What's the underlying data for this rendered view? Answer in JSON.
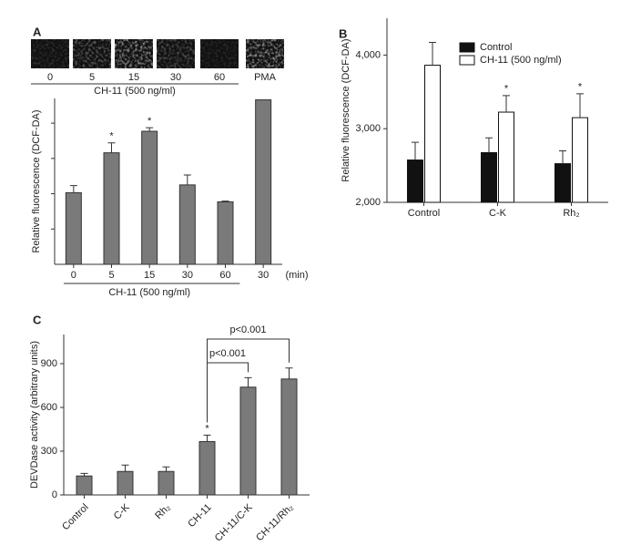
{
  "chart_data": [
    {
      "type": "bar",
      "panel_label": "A",
      "categories": [
        "0",
        "5",
        "15",
        "30",
        "60",
        "30"
      ],
      "values": [
        2.03,
        3.16,
        3.77,
        2.25,
        1.77,
        4.66
      ],
      "errors": [
        0.2,
        0.28,
        0.1,
        0.28,
        0.02,
        0
      ],
      "markers": [
        null,
        "*",
        "*",
        null,
        null,
        null
      ],
      "color": "#7a7a7a",
      "ylim": [
        0,
        4.7
      ],
      "yticks": [
        1,
        2,
        3,
        4
      ],
      "tick_labels": false,
      "ylabel": "Relative fluorescence (DCF-DA)",
      "xlabel": "(min)",
      "group_label": "CH-11 (500 ng/ml)",
      "image_labels": [
        "0",
        "5",
        "15",
        "30",
        "60",
        "PMA"
      ],
      "image_group_label": "CH-11 (500 ng/ml)"
    },
    {
      "type": "grouped_bar",
      "panel_label": "B",
      "categories": [
        "Control",
        "C-K",
        "Rh₂"
      ],
      "series": [
        {
          "name": "Control",
          "color": "#111111",
          "values": [
            2575,
            2675,
            2525
          ],
          "errors": [
            240,
            200,
            175
          ],
          "markers": [
            null,
            null,
            null
          ]
        },
        {
          "name": "CH-11 (500 ng/ml)",
          "color": "#ffffff",
          "values": [
            3862,
            3225,
            3150
          ],
          "errors": [
            310,
            225,
            325
          ],
          "markers": [
            null,
            "*",
            "*"
          ]
        }
      ],
      "ylim": [
        2000,
        4500
      ],
      "yticks": [
        {
          "value": 2000,
          "label": "2,000"
        },
        {
          "value": 3000,
          "label": "3,000"
        },
        {
          "value": 4000,
          "label": "4,000"
        }
      ],
      "ylabel": "Relative fluorescence (DCF-DA)",
      "legend": "top"
    },
    {
      "type": "bar",
      "panel_label": "C",
      "categories": [
        "Control",
        "C-K",
        "Rh₂",
        "CH-11",
        "CH-11/C-K",
        "CH-11/Rh₂"
      ],
      "values": [
        130,
        161,
        161,
        366,
        739,
        795
      ],
      "errors": [
        18,
        44,
        31,
        44,
        65,
        75
      ],
      "markers": [
        null,
        null,
        null,
        "*",
        null,
        null
      ],
      "color": "#7a7a7a",
      "ylim": [
        0,
        1100
      ],
      "yticks": [
        0,
        300,
        600,
        900
      ],
      "ylabel": "DEVDase activity (arbitrary units)",
      "rotate_labels": 45,
      "comparisons": [
        {
          "text": "p<0.001",
          "from": 3,
          "to": 4
        },
        {
          "text": "p<0.001",
          "from": 3,
          "to": 5
        }
      ]
    }
  ]
}
